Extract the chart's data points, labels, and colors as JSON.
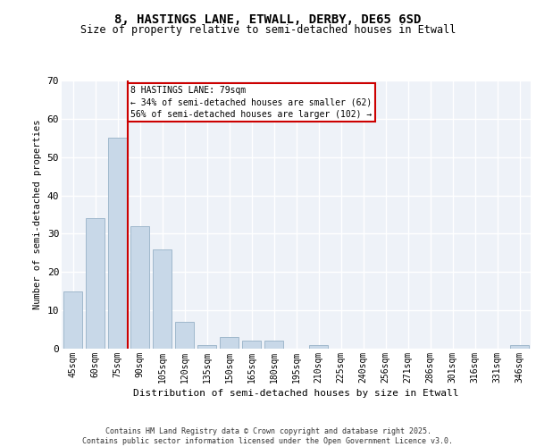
{
  "title_line1": "8, HASTINGS LANE, ETWALL, DERBY, DE65 6SD",
  "title_line2": "Size of property relative to semi-detached houses in Etwall",
  "xlabel": "Distribution of semi-detached houses by size in Etwall",
  "ylabel": "Number of semi-detached properties",
  "footnote_line1": "Contains HM Land Registry data © Crown copyright and database right 2025.",
  "footnote_line2": "Contains public sector information licensed under the Open Government Licence v3.0.",
  "categories": [
    "45sqm",
    "60sqm",
    "75sqm",
    "90sqm",
    "105sqm",
    "120sqm",
    "135sqm",
    "150sqm",
    "165sqm",
    "180sqm",
    "195sqm",
    "210sqm",
    "225sqm",
    "240sqm",
    "256sqm",
    "271sqm",
    "286sqm",
    "301sqm",
    "316sqm",
    "331sqm",
    "346sqm"
  ],
  "values": [
    15,
    34,
    55,
    32,
    26,
    7,
    1,
    3,
    2,
    2,
    0,
    1,
    0,
    0,
    0,
    0,
    0,
    0,
    0,
    0,
    1
  ],
  "bar_color": "#c8d8e8",
  "bar_edge_color": "#a0b8cc",
  "background_color": "#eef2f8",
  "grid_color": "#ffffff",
  "annotation_text": "8 HASTINGS LANE: 79sqm\n← 34% of semi-detached houses are smaller (62)\n56% of semi-detached houses are larger (102) →",
  "annotation_box_color": "#cc0000",
  "vline_x_index": 2.47,
  "vline_color": "#cc0000",
  "ylim": [
    0,
    70
  ],
  "yticks": [
    0,
    10,
    20,
    30,
    40,
    50,
    60,
    70
  ]
}
